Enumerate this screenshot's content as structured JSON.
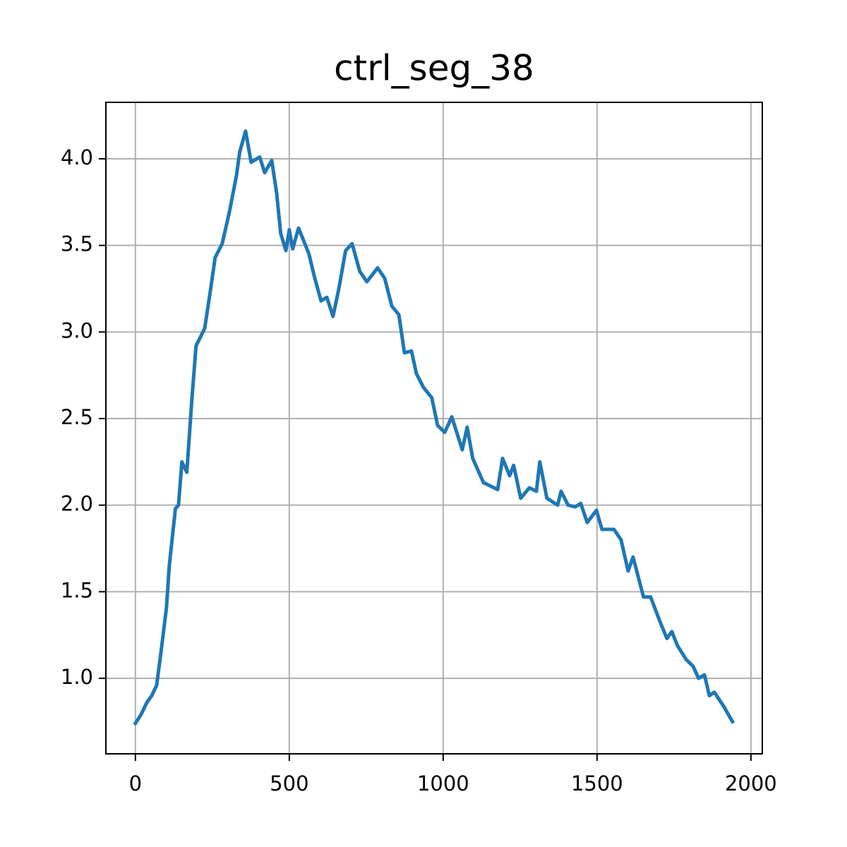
{
  "chart_data": {
    "type": "line",
    "title": "ctrl_seg_38",
    "x": [
      0,
      18,
      37,
      53,
      69,
      83,
      101,
      110,
      130,
      140,
      151,
      167,
      183,
      197,
      225,
      243,
      259,
      282,
      305,
      328,
      339,
      358,
      376,
      404,
      420,
      443,
      459,
      472,
      489,
      500,
      511,
      530,
      546,
      564,
      580,
      603,
      622,
      642,
      661,
      683,
      704,
      729,
      752,
      787,
      810,
      833,
      856,
      874,
      897,
      913,
      936,
      963,
      982,
      1005,
      1028,
      1062,
      1078,
      1096,
      1131,
      1177,
      1193,
      1216,
      1229,
      1252,
      1280,
      1303,
      1314,
      1337,
      1372,
      1383,
      1406,
      1429,
      1447,
      1468,
      1498,
      1516,
      1555,
      1578,
      1601,
      1617,
      1651,
      1674,
      1704,
      1727,
      1743,
      1761,
      1789,
      1812,
      1830,
      1849,
      1865,
      1881,
      1911,
      1940
    ],
    "series": [
      {
        "name": "ctrl_seg_38",
        "color": "#1f77b4",
        "values": [
          0.74,
          0.79,
          0.86,
          0.9,
          0.96,
          1.15,
          1.41,
          1.65,
          1.98,
          2.0,
          2.25,
          2.19,
          2.6,
          2.92,
          3.02,
          3.23,
          3.43,
          3.51,
          3.69,
          3.9,
          4.04,
          4.16,
          3.98,
          4.01,
          3.92,
          3.99,
          3.8,
          3.57,
          3.47,
          3.59,
          3.48,
          3.6,
          3.53,
          3.45,
          3.33,
          3.18,
          3.2,
          3.09,
          3.25,
          3.47,
          3.51,
          3.35,
          3.29,
          3.37,
          3.31,
          3.15,
          3.1,
          2.88,
          2.89,
          2.76,
          2.68,
          2.62,
          2.46,
          2.42,
          2.51,
          2.32,
          2.45,
          2.27,
          2.13,
          2.09,
          2.27,
          2.17,
          2.23,
          2.04,
          2.1,
          2.08,
          2.25,
          2.04,
          2.0,
          2.08,
          2.0,
          1.99,
          2.01,
          1.9,
          1.97,
          1.86,
          1.86,
          1.8,
          1.62,
          1.7,
          1.47,
          1.47,
          1.33,
          1.23,
          1.27,
          1.19,
          1.11,
          1.07,
          1.0,
          1.02,
          0.9,
          0.92,
          0.84,
          0.75
        ]
      }
    ],
    "xlim": [
      -96,
      2037
    ],
    "ylim": [
      0.564,
      4.326
    ],
    "xticks": [
      0,
      500,
      1000,
      1500,
      2000
    ],
    "yticks": [
      {
        "value": 1,
        "label": "1.0"
      },
      {
        "value": 1.5,
        "label": "1.5"
      },
      {
        "value": 2,
        "label": "2.0"
      },
      {
        "value": 2.5,
        "label": "2.5"
      },
      {
        "value": 3,
        "label": "3.0"
      },
      {
        "value": 3.5,
        "label": "3.5"
      },
      {
        "value": 4,
        "label": "4.0"
      }
    ],
    "grid": true
  }
}
